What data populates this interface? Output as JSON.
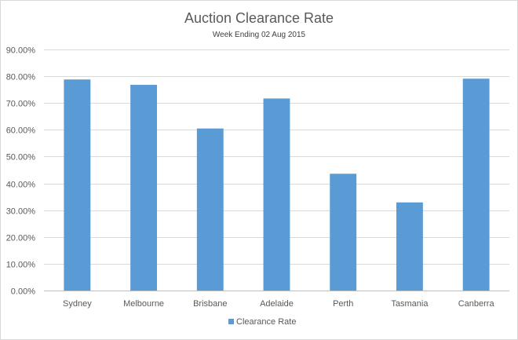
{
  "chart_data": {
    "type": "bar",
    "title": "Auction Clearance Rate",
    "subtitle": "Week Ending 02 Aug 2015",
    "categories": [
      "Sydney",
      "Melbourne",
      "Brisbane",
      "Adelaide",
      "Perth",
      "Tasmania",
      "Canberra"
    ],
    "series": [
      {
        "name": "Clearance Rate",
        "values": [
          0.788,
          0.768,
          0.605,
          0.717,
          0.436,
          0.329,
          0.791
        ],
        "color": "#5b9bd5"
      }
    ],
    "ylim": [
      0,
      0.9
    ],
    "y_ticks": [
      0,
      0.1,
      0.2,
      0.3,
      0.4,
      0.5,
      0.6,
      0.7,
      0.8,
      0.9
    ],
    "y_tick_labels": [
      "0.00%",
      "10.00%",
      "20.00%",
      "30.00%",
      "40.00%",
      "50.00%",
      "60.00%",
      "70.00%",
      "80.00%",
      "90.00%"
    ],
    "grid": true,
    "legend_position": "bottom"
  }
}
